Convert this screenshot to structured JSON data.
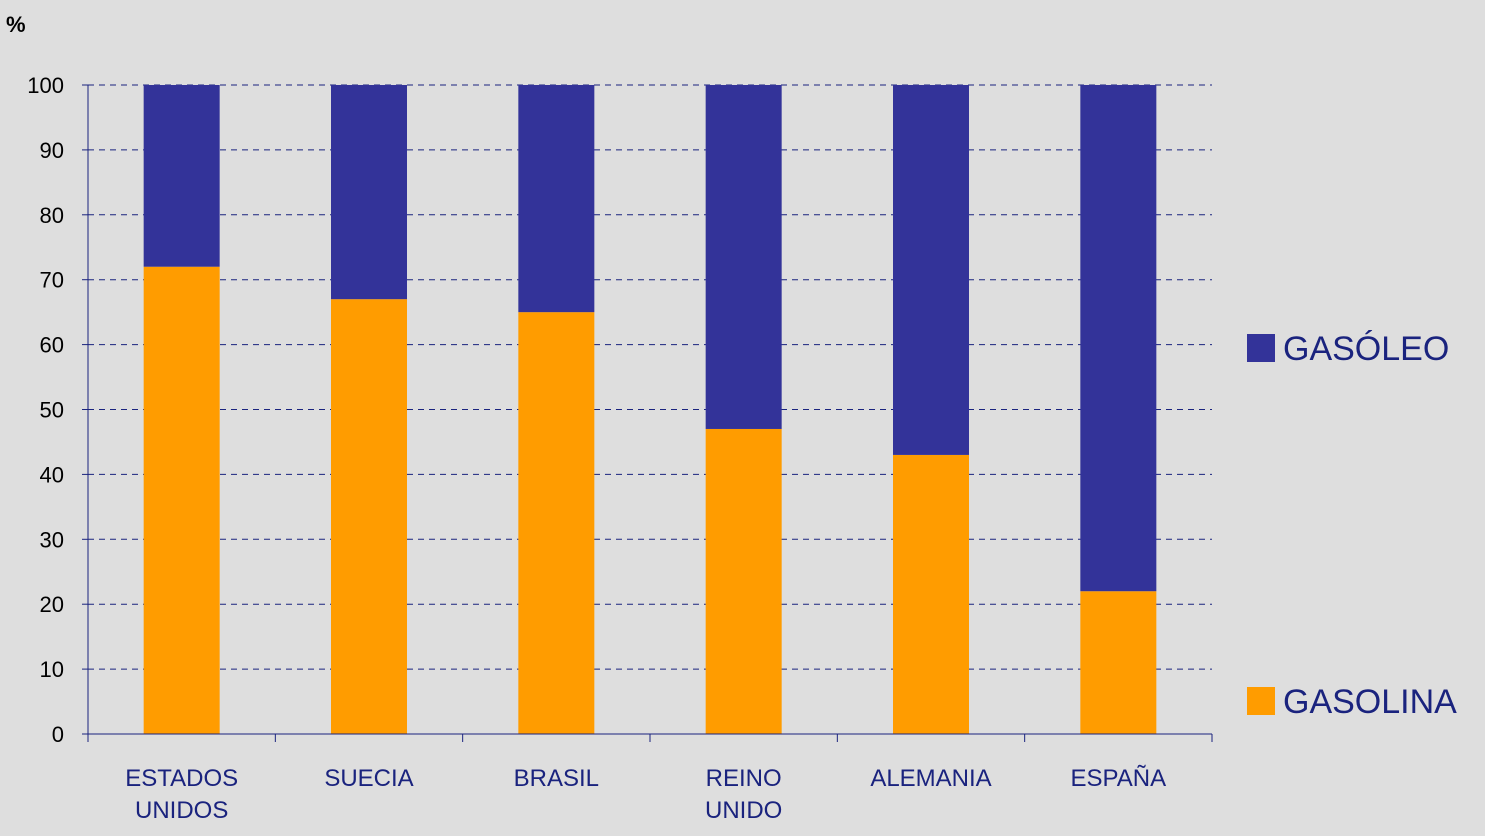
{
  "chart_data": {
    "type": "bar",
    "stacked": true,
    "unit_label": "%",
    "ylim": [
      0,
      100
    ],
    "yticks": [
      0,
      10,
      20,
      30,
      40,
      50,
      60,
      70,
      80,
      90,
      100
    ],
    "grid": true,
    "legend_position": "right",
    "categories": [
      [
        "ESTADOS",
        "UNIDOS"
      ],
      [
        "SUECIA"
      ],
      [
        "BRASIL"
      ],
      [
        "REINO",
        "UNIDO"
      ],
      [
        "ALEMANIA"
      ],
      [
        "ESPAÑA"
      ]
    ],
    "series": [
      {
        "name": "GASOLINA",
        "color": "#ff9c00",
        "values": [
          72,
          67,
          65,
          47,
          43,
          22
        ]
      },
      {
        "name": "GASÓLEO",
        "color": "#333399",
        "values": [
          28,
          33,
          35,
          53,
          57,
          78
        ]
      }
    ]
  }
}
